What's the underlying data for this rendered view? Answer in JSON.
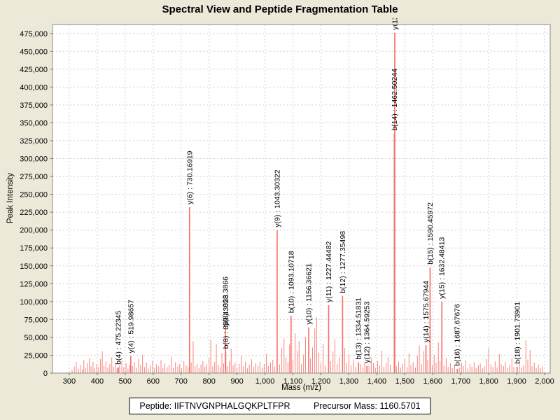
{
  "page": {
    "background_color": "#ece9d8",
    "title": "Spectral View and Peptide Fragmentation Table"
  },
  "footer": {
    "peptide_label": "Peptide: IIFTNVGNPHALGQKPLTFPR",
    "precursor_label": "Precursor Mass: 1160.5701"
  },
  "chart_data": {
    "type": "bar",
    "subtype": "mass-spectrum-stick-plot",
    "title": "Spectral View and Peptide Fragmentation Table",
    "xlabel": "Mass (m/z)",
    "ylabel": "Peak Intensity",
    "xlim": [
      240,
      2020
    ],
    "ylim": [
      0,
      487500
    ],
    "x_ticks": {
      "start": 300,
      "end": 2000,
      "step": 100
    },
    "y_ticks": {
      "start": 0,
      "end": 475000,
      "step": 25000
    },
    "grid": "dashed",
    "legend": "none",
    "colors": {
      "plot_background": "#ffffff",
      "outer_background": "#ece9d8",
      "grid_line": "#cfcfcf",
      "plot_border": "#8a8a8a",
      "noise_peak": "#f9837b",
      "annotated_peak": "#f8736b",
      "label_text": "#000000"
    },
    "annotated_peaks": [
      {
        "ion": "b(4)",
        "label": "b(4) : 475.22345",
        "mz": 475.22345,
        "intensity": 8000
      },
      {
        "ion": "y(4)",
        "label": "y(4) : 519.98657",
        "mz": 519.98657,
        "intensity": 24000
      },
      {
        "ion": "y(6)",
        "label": "y(6) : 730.16919",
        "mz": 730.16919,
        "intensity": 232000
      },
      {
        "ion": "y(8)",
        "label": "y(8) : 858.3866",
        "mz": 858.3866,
        "intensity": 62000
      },
      {
        "ion": "b(8)",
        "label": "b(8) : 859.43023",
        "mz": 859.43023,
        "intensity": 30000
      },
      {
        "ion": "y(9)",
        "label": "y(9) : 1043.30322",
        "mz": 1043.30322,
        "intensity": 200000
      },
      {
        "ion": "b(10)",
        "label": "b(10) : 1093.10718",
        "mz": 1093.10718,
        "intensity": 80000
      },
      {
        "ion": "y(10)",
        "label": "y(10) : 1156.36621",
        "mz": 1156.36621,
        "intensity": 64000
      },
      {
        "ion": "y(11)",
        "label": "y(11) : 1227.44482",
        "mz": 1227.44482,
        "intensity": 95000
      },
      {
        "ion": "b(12)",
        "label": "b(12) : 1277.35498",
        "mz": 1277.35498,
        "intensity": 108000
      },
      {
        "ion": "b(13)",
        "label": "b(13) : 1334.51831",
        "mz": 1334.51831,
        "intensity": 15000
      },
      {
        "ion": "y(12)",
        "label": "y(12) : 1364.59253",
        "mz": 1364.59253,
        "intensity": 10000
      },
      {
        "ion": "b(14)",
        "label": "b(14) : 1462.50244",
        "mz": 1462.50244,
        "intensity": 335000
      },
      {
        "ion": "y(13)",
        "label": "y(13)",
        "mz": 1464.0,
        "intensity": 476000
      },
      {
        "ion": "y(14)",
        "label": "y(14) : 1575.67944",
        "mz": 1575.67944,
        "intensity": 39000
      },
      {
        "ion": "b(15)",
        "label": "b(15) : 1590.45972",
        "mz": 1590.45972,
        "intensity": 148000
      },
      {
        "ion": "y(15)",
        "label": "y(15) : 1632.48413",
        "mz": 1632.48413,
        "intensity": 100000
      },
      {
        "ion": "b(16)",
        "label": "b(16) : 1687.67676",
        "mz": 1687.67676,
        "intensity": 6000
      },
      {
        "ion": "b(18)",
        "label": "b(18) : 1901.73901",
        "mz": 1901.73901,
        "intensity": 9000
      }
    ],
    "noise_peaks": [
      [
        310,
        4200
      ],
      [
        318,
        9300
      ],
      [
        325,
        15400
      ],
      [
        333,
        6100
      ],
      [
        340,
        11200
      ],
      [
        347,
        5300
      ],
      [
        352,
        18500
      ],
      [
        358,
        7200
      ],
      [
        365,
        13600
      ],
      [
        372,
        21000
      ],
      [
        378,
        9400
      ],
      [
        385,
        15800
      ],
      [
        391,
        6300
      ],
      [
        398,
        12500
      ],
      [
        405,
        8600
      ],
      [
        412,
        19800
      ],
      [
        418,
        30500
      ],
      [
        424,
        10200
      ],
      [
        431,
        16400
      ],
      [
        438,
        7500
      ],
      [
        445,
        12800
      ],
      [
        452,
        22400
      ],
      [
        458,
        9100
      ],
      [
        465,
        14300
      ],
      [
        471,
        6700
      ],
      [
        480,
        10400
      ],
      [
        488,
        17600
      ],
      [
        495,
        8200
      ],
      [
        503,
        13900
      ],
      [
        510,
        6400
      ],
      [
        516,
        11700
      ],
      [
        526,
        9800
      ],
      [
        533,
        15200
      ],
      [
        540,
        7600
      ],
      [
        548,
        20300
      ],
      [
        555,
        11400
      ],
      [
        562,
        25600
      ],
      [
        569,
        8300
      ],
      [
        576,
        14700
      ],
      [
        583,
        6200
      ],
      [
        590,
        10900
      ],
      [
        598,
        16800
      ],
      [
        605,
        7400
      ],
      [
        612,
        12300
      ],
      [
        620,
        9600
      ],
      [
        628,
        18200
      ],
      [
        635,
        6800
      ],
      [
        642,
        13400
      ],
      [
        650,
        8100
      ],
      [
        657,
        11600
      ],
      [
        665,
        22800
      ],
      [
        672,
        7300
      ],
      [
        680,
        15600
      ],
      [
        688,
        9200
      ],
      [
        695,
        12700
      ],
      [
        702,
        6500
      ],
      [
        710,
        17300
      ],
      [
        718,
        10600
      ],
      [
        725,
        8400
      ],
      [
        736,
        14900
      ],
      [
        743,
        44500
      ],
      [
        750,
        9700
      ],
      [
        757,
        13200
      ],
      [
        764,
        7100
      ],
      [
        771,
        11900
      ],
      [
        778,
        16500
      ],
      [
        785,
        8700
      ],
      [
        792,
        12400
      ],
      [
        800,
        20700
      ],
      [
        806,
        46200
      ],
      [
        813,
        9300
      ],
      [
        820,
        15700
      ],
      [
        826,
        40800
      ],
      [
        833,
        11300
      ],
      [
        840,
        7800
      ],
      [
        846,
        28400
      ],
      [
        852,
        13600
      ],
      [
        865,
        9500
      ],
      [
        872,
        16900
      ],
      [
        879,
        34200
      ],
      [
        886,
        10800
      ],
      [
        893,
        14500
      ],
      [
        900,
        7200
      ],
      [
        908,
        12900
      ],
      [
        915,
        24300
      ],
      [
        922,
        9400
      ],
      [
        930,
        16200
      ],
      [
        937,
        6600
      ],
      [
        944,
        11800
      ],
      [
        952,
        19400
      ],
      [
        960,
        8500
      ],
      [
        967,
        13700
      ],
      [
        975,
        10300
      ],
      [
        982,
        15900
      ],
      [
        990,
        7700
      ],
      [
        997,
        12600
      ],
      [
        1005,
        26800
      ],
      [
        1012,
        9900
      ],
      [
        1020,
        14800
      ],
      [
        1028,
        18600
      ],
      [
        1035,
        8800
      ],
      [
        1052,
        12200
      ],
      [
        1060,
        35600
      ],
      [
        1068,
        48300
      ],
      [
        1075,
        22700
      ],
      [
        1082,
        15300
      ],
      [
        1088,
        40200
      ],
      [
        1100,
        18900
      ],
      [
        1108,
        55400
      ],
      [
        1115,
        30800
      ],
      [
        1122,
        44600
      ],
      [
        1130,
        12700
      ],
      [
        1138,
        25900
      ],
      [
        1145,
        50300
      ],
      [
        1163,
        20600
      ],
      [
        1170,
        35800
      ],
      [
        1178,
        62400
      ],
      [
        1185,
        78200
      ],
      [
        1192,
        28600
      ],
      [
        1200,
        14400
      ],
      [
        1208,
        40700
      ],
      [
        1215,
        10600
      ],
      [
        1235,
        16700
      ],
      [
        1243,
        30400
      ],
      [
        1250,
        47600
      ],
      [
        1258,
        12800
      ],
      [
        1266,
        22300
      ],
      [
        1285,
        35300
      ],
      [
        1292,
        14600
      ],
      [
        1300,
        25700
      ],
      [
        1308,
        10900
      ],
      [
        1316,
        18400
      ],
      [
        1324,
        8600
      ],
      [
        1342,
        12400
      ],
      [
        1350,
        7900
      ],
      [
        1357,
        15600
      ],
      [
        1372,
        9700
      ],
      [
        1380,
        20900
      ],
      [
        1388,
        13800
      ],
      [
        1395,
        7400
      ],
      [
        1403,
        16600
      ],
      [
        1410,
        10700
      ],
      [
        1418,
        31400
      ],
      [
        1425,
        8900
      ],
      [
        1433,
        14200
      ],
      [
        1440,
        22600
      ],
      [
        1448,
        11800
      ],
      [
        1470,
        9600
      ],
      [
        1478,
        16300
      ],
      [
        1485,
        7800
      ],
      [
        1492,
        12900
      ],
      [
        1500,
        19700
      ],
      [
        1508,
        8400
      ],
      [
        1515,
        27800
      ],
      [
        1522,
        11600
      ],
      [
        1530,
        15400
      ],
      [
        1538,
        7600
      ],
      [
        1545,
        23800
      ],
      [
        1552,
        38600
      ],
      [
        1560,
        12600
      ],
      [
        1568,
        30700
      ],
      [
        1582,
        18300
      ],
      [
        1598,
        10800
      ],
      [
        1605,
        25400
      ],
      [
        1612,
        14700
      ],
      [
        1620,
        42800
      ],
      [
        1626,
        16800
      ],
      [
        1640,
        10400
      ],
      [
        1648,
        20600
      ],
      [
        1655,
        8700
      ],
      [
        1663,
        13600
      ],
      [
        1670,
        6900
      ],
      [
        1678,
        11400
      ],
      [
        1695,
        7700
      ],
      [
        1703,
        14300
      ],
      [
        1710,
        9600
      ],
      [
        1718,
        17800
      ],
      [
        1725,
        6400
      ],
      [
        1733,
        12700
      ],
      [
        1740,
        8900
      ],
      [
        1748,
        15300
      ],
      [
        1755,
        7200
      ],
      [
        1763,
        10800
      ],
      [
        1770,
        13400
      ],
      [
        1778,
        6600
      ],
      [
        1785,
        9800
      ],
      [
        1793,
        19600
      ],
      [
        1800,
        34700
      ],
      [
        1808,
        11700
      ],
      [
        1815,
        8300
      ],
      [
        1823,
        16400
      ],
      [
        1830,
        7900
      ],
      [
        1838,
        26700
      ],
      [
        1845,
        12300
      ],
      [
        1853,
        9700
      ],
      [
        1860,
        15800
      ],
      [
        1868,
        7400
      ],
      [
        1875,
        11900
      ],
      [
        1883,
        20400
      ],
      [
        1890,
        8600
      ],
      [
        1910,
        13700
      ],
      [
        1918,
        7800
      ],
      [
        1925,
        10900
      ],
      [
        1933,
        45600
      ],
      [
        1940,
        18700
      ],
      [
        1948,
        32400
      ],
      [
        1955,
        9800
      ],
      [
        1963,
        14600
      ],
      [
        1970,
        7300
      ],
      [
        1978,
        11800
      ],
      [
        1985,
        6700
      ],
      [
        1992,
        9400
      ]
    ]
  }
}
